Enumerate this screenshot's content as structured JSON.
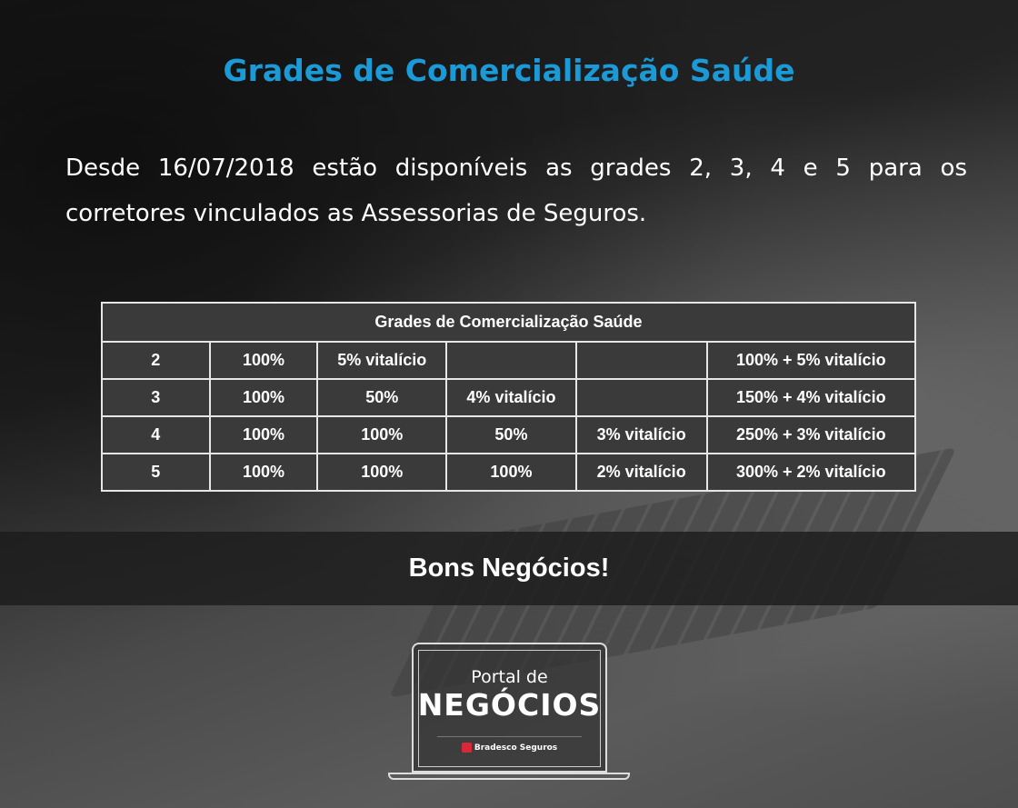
{
  "title": "Grades de Comercialização Saúde",
  "paragraph": "Desde 16/07/2018 estão disponíveis as grades 2, 3, 4 e 5 para os corretores vinculados as Assessorias de Seguros.",
  "table": {
    "header": "Grades de Comercialização Saúde",
    "rows": [
      [
        "2",
        "100%",
        "5% vitalício",
        "",
        "",
        "100% + 5% vitalício"
      ],
      [
        "3",
        "100%",
        "50%",
        "4% vitalício",
        "",
        "150% + 4% vitalício"
      ],
      [
        "4",
        "100%",
        "100%",
        "50%",
        "3% vitalício",
        "250% + 3% vitalício"
      ],
      [
        "5",
        "100%",
        "100%",
        "100%",
        "2% vitalício",
        "300% + 2% vitalício"
      ]
    ]
  },
  "banner": "Bons Negócios!",
  "logo": {
    "line1": "Portal de",
    "line2": "NEGÓCIOS",
    "brand": "Bradesco Seguros"
  },
  "colors": {
    "title": "#1b9ad8",
    "brand": "#d8283a"
  }
}
